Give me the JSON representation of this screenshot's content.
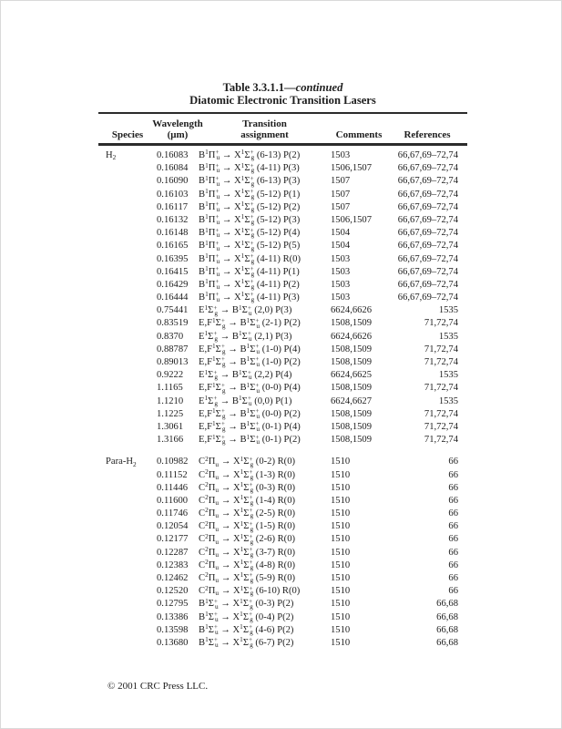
{
  "page": {
    "footer_text": "© 2001 CRC Press LLC."
  },
  "table": {
    "title_prefix": "Table 3.3.1.1—",
    "title_continued": "continued",
    "subtitle": "Diatomic Electronic Transition Lasers",
    "columns": {
      "species": "Species",
      "wavelength_line1": "Wavelength",
      "wavelength_line2": "(μm)",
      "transition_line1": "Transition",
      "transition_line2": "assignment",
      "comments": "Comments",
      "references": "References"
    },
    "rows": [
      {
        "species": "H[2]",
        "wavelength": "0.16083",
        "transition": "B{1}Π{+}[u] → X{1}Σ{+}[g] (6-13) P(2)",
        "comments": "1503",
        "references": "66,67,69–72,74"
      },
      {
        "species": "",
        "wavelength": "0.16084",
        "transition": "B{1}Π{+}[u] → X{1}Σ{+}[g] (4-11) P(3)",
        "comments": "1506,1507",
        "references": "66,67,69–72,74"
      },
      {
        "species": "",
        "wavelength": "0.16090",
        "transition": "B{1}Π{+}[u] → X{1}Σ{+}[g] (6-13) P(3)",
        "comments": "1507",
        "references": "66,67,69–72,74"
      },
      {
        "species": "",
        "wavelength": "0.16103",
        "transition": "B{1}Π{+}[u] → X{1}Σ{+}[g] (5-12) P(1)",
        "comments": "1507",
        "references": "66,67,69–72,74"
      },
      {
        "species": "",
        "wavelength": "0.16117",
        "transition": "B{1}Π{+}[u] → X{1}Σ{+}[g] (5-12) P(2)",
        "comments": "1507",
        "references": "66,67,69–72,74"
      },
      {
        "species": "",
        "wavelength": "0.16132",
        "transition": "B{1}Π{+}[u] → X{1}Σ{+}[g] (5-12) P(3)",
        "comments": "1506,1507",
        "references": "66,67,69–72,74"
      },
      {
        "species": "",
        "wavelength": "0.16148",
        "transition": "B{1}Π{+}[u] → X{1}Σ{+}[g] (5-12) P(4)",
        "comments": "1504",
        "references": "66,67,69–72,74"
      },
      {
        "species": "",
        "wavelength": "0.16165",
        "transition": "B{1}Π{+}[u] → X{1}Σ{+}[g] (5-12) P(5)",
        "comments": "1504",
        "references": "66,67,69–72,74"
      },
      {
        "species": "",
        "wavelength": "0.16395",
        "transition": "B{1}Π{+}[u] → X{1}Σ{+}[g] (4-11) R(0)",
        "comments": "1503",
        "references": "66,67,69–72,74"
      },
      {
        "species": "",
        "wavelength": "0.16415",
        "transition": "B{1}Π{+}[u] → X{1}Σ{+}[g] (4-11) P(1)",
        "comments": "1503",
        "references": "66,67,69–72,74"
      },
      {
        "species": "",
        "wavelength": "0.16429",
        "transition": "B{1}Π{+}[u] → X{1}Σ{+}[g] (4-11) P(2)",
        "comments": "1503",
        "references": "66,67,69–72,74"
      },
      {
        "species": "",
        "wavelength": "0.16444",
        "transition": "B{1}Π{+}[u] → X{1}Σ{+}[g] (4-11) P(3)",
        "comments": "1503",
        "references": "66,67,69–72,74"
      },
      {
        "species": "",
        "wavelength": "0.75441",
        "transition": "E{1}Σ{+}[g] → B{1}Σ{+}[u] (2,0) P(3)",
        "comments": "6624,6626",
        "references": "1535"
      },
      {
        "species": "",
        "wavelength": "0.83519",
        "transition": "E,F{1}Σ{+}[g] → B{1}Σ{+}[u] (2-1) P(2)",
        "comments": "1508,1509",
        "references": "71,72,74"
      },
      {
        "species": "",
        "wavelength": "0.8370",
        "transition": "E{1}Σ{+}[g] → B{1}Σ{+}[u] (2,1) P(3)",
        "comments": "6624,6626",
        "references": "1535"
      },
      {
        "species": "",
        "wavelength": "0.88787",
        "transition": "E,F{1}Σ{+}[g] → B{1}Σ{+}[u] (1-0) P(4)",
        "comments": "1508,1509",
        "references": "71,72,74"
      },
      {
        "species": "",
        "wavelength": "0.89013",
        "transition": "E,F{1}Σ{+}[g] → B{1}Σ{+}[u] (1-0) P(2)",
        "comments": "1508,1509",
        "references": "71,72,74"
      },
      {
        "species": "",
        "wavelength": "0.9222",
        "transition": "E{1}Σ{+}[g] → B{1}Σ{+}[u] (2,2) P(4)",
        "comments": "6624,6625",
        "references": "1535"
      },
      {
        "species": "",
        "wavelength": "1.1165",
        "transition": "E,F{1}Σ{+}[g] → B{1}Σ{+}[u] (0-0) P(4)",
        "comments": "1508,1509",
        "references": "71,72,74"
      },
      {
        "species": "",
        "wavelength": "1.1210",
        "transition": "E{1}Σ{+}[g] → B{1}Σ{+}[u] (0,0) P(1)",
        "comments": "6624,6627",
        "references": "1535"
      },
      {
        "species": "",
        "wavelength": "1.1225",
        "transition": "E,F{1}Σ{+}[g] → B{1}Σ{+}[u] (0-0) P(2)",
        "comments": "1508,1509",
        "references": "71,72,74"
      },
      {
        "species": "",
        "wavelength": "1.3061",
        "transition": "E,F{1}Σ{+}[g] → B{1}Σ{+}[u] (0-1) P(4)",
        "comments": "1508,1509",
        "references": "71,72,74"
      },
      {
        "species": "",
        "wavelength": "1.3166",
        "transition": "E,F{1}Σ{+}[g] → B{1}Σ{+}[u] (0-1) P(2)",
        "comments": "1508,1509",
        "references": "71,72,74"
      },
      {
        "species": "Para-H[2]",
        "gap": true,
        "wavelength": "0.10982",
        "transition": "C{2}Π[u] → X{1}Σ{+}[g] (0-2) R(0)",
        "comments": "1510",
        "references": "66"
      },
      {
        "species": "",
        "wavelength": "0.11152",
        "transition": "C{2}Π[u] → X{1}Σ{+}[g] (1-3) R(0)",
        "comments": "1510",
        "references": "66"
      },
      {
        "species": "",
        "wavelength": "0.11446",
        "transition": "C{2}Π[u] → X{1}Σ{+}[g] (0-3) R(0)",
        "comments": "1510",
        "references": "66"
      },
      {
        "species": "",
        "wavelength": "0.11600",
        "transition": "C{2}Π[u] → X{1}Σ{+}[g] (1-4) R(0)",
        "comments": "1510",
        "references": "66"
      },
      {
        "species": "",
        "wavelength": "0.11746",
        "transition": "C{2}Π[u] → X{1}Σ{+}[g] (2-5) R(0)",
        "comments": "1510",
        "references": "66"
      },
      {
        "species": "",
        "wavelength": "0.12054",
        "transition": "C{2}Π[u] → X{1}Σ{+}[g] (1-5) R(0)",
        "comments": "1510",
        "references": "66"
      },
      {
        "species": "",
        "wavelength": "0.12177",
        "transition": "C{2}Π[u] → X{1}Σ{+}[g] (2-6) R(0)",
        "comments": "1510",
        "references": "66"
      },
      {
        "species": "",
        "wavelength": "0.12287",
        "transition": "C{2}Π[u] → X{1}Σ{+}[g] (3-7) R(0)",
        "comments": "1510",
        "references": "66"
      },
      {
        "species": "",
        "wavelength": "0.12383",
        "transition": "C{2}Π[u] → X{1}Σ{+}[g] (4-8) R(0)",
        "comments": "1510",
        "references": "66"
      },
      {
        "species": "",
        "wavelength": "0.12462",
        "transition": "C{2}Π[u] → X{1}Σ{+}[g] (5-9) R(0)",
        "comments": "1510",
        "references": "66"
      },
      {
        "species": "",
        "wavelength": "0.12520",
        "transition": "C{2}Π[u] → X{1}Σ{+}[g] (6-10) R(0)",
        "comments": "1510",
        "references": "66"
      },
      {
        "species": "",
        "wavelength": "0.12795",
        "transition": "B{1}Σ{+}[u] → X{1}Σ{+}[g] (0-3) P(2)",
        "comments": "1510",
        "references": "66,68"
      },
      {
        "species": "",
        "wavelength": "0.13386",
        "transition": "B{1}Σ{+}[u] → X{1}Σ{+}[g] (0-4) P(2)",
        "comments": "1510",
        "references": "66,68"
      },
      {
        "species": "",
        "wavelength": "0.13598",
        "transition": "B{1}Σ{+}[u] → X{1}Σ{+}[g] (4-6) P(2)",
        "comments": "1510",
        "references": "66,68"
      },
      {
        "species": "",
        "wavelength": "0.13680",
        "transition": "B{1}Σ{+}[u] → X{1}Σ{+}[g] (6-7) P(2)",
        "comments": "1510",
        "references": "66,68"
      }
    ]
  }
}
